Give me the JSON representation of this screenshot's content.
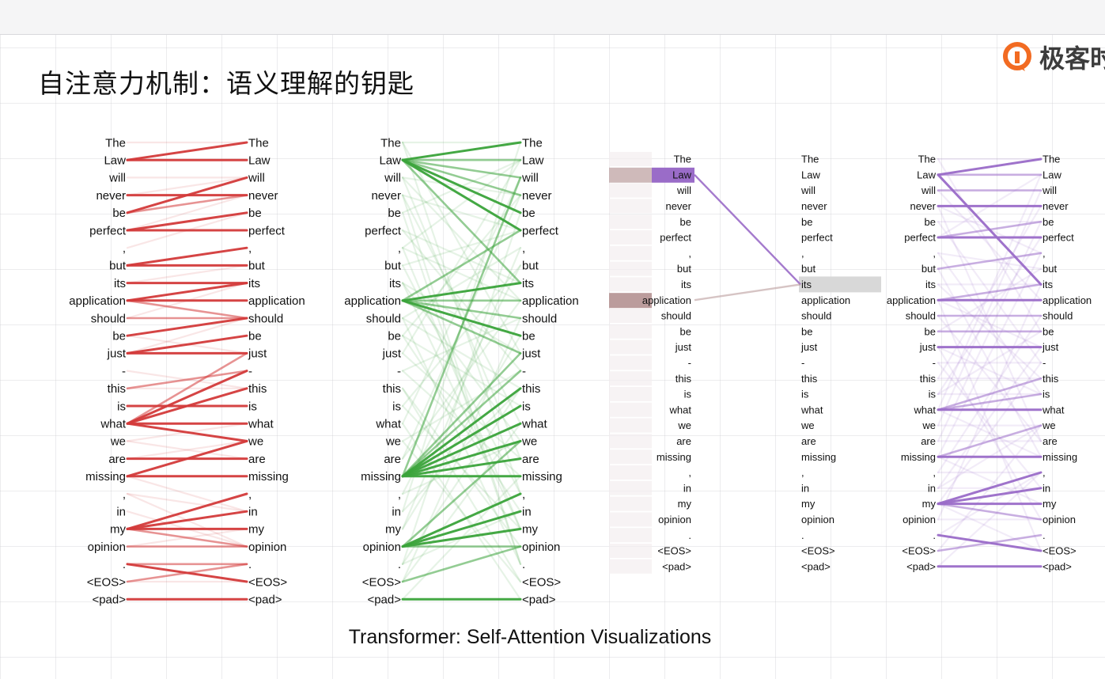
{
  "window": {},
  "slide": {
    "title": "自注意力机制：语义理解的钥匙",
    "brand": "极客时",
    "caption": "Transformer: Self-Attention Visualizations"
  },
  "tokens": [
    "The",
    "Law",
    "will",
    "never",
    "be",
    "perfect",
    ",",
    "but",
    "its",
    "application",
    "should",
    "be",
    "just",
    "-",
    "this",
    "is",
    "what",
    "we",
    "are",
    "missing",
    ",",
    "in",
    "my",
    "opinion",
    ".",
    "<EOS>",
    "<pad>"
  ],
  "colors": {
    "red": "#d33a3a",
    "green": "#3aa33a",
    "purple": "#9a6cc8",
    "brown": "#bb9c9c",
    "highlight": "#d8d8d8"
  },
  "panels": [
    {
      "name": "red",
      "color": "red",
      "strong": [
        [
          1,
          0
        ],
        [
          1,
          1
        ],
        [
          3,
          3
        ],
        [
          4,
          2
        ],
        [
          5,
          5
        ],
        [
          5,
          4
        ],
        [
          7,
          6
        ],
        [
          7,
          7
        ],
        [
          8,
          8
        ],
        [
          9,
          9
        ],
        [
          9,
          8
        ],
        [
          11,
          10
        ],
        [
          12,
          12
        ],
        [
          12,
          11
        ],
        [
          15,
          15
        ],
        [
          16,
          16
        ],
        [
          16,
          14
        ],
        [
          16,
          13
        ],
        [
          16,
          17
        ],
        [
          18,
          18
        ],
        [
          19,
          19
        ],
        [
          19,
          17
        ],
        [
          22,
          22
        ],
        [
          22,
          20
        ],
        [
          22,
          21
        ],
        [
          24,
          25
        ],
        [
          26,
          26
        ]
      ],
      "medium": [
        [
          4,
          3
        ],
        [
          9,
          10
        ],
        [
          10,
          10
        ],
        [
          14,
          13
        ],
        [
          16,
          12
        ],
        [
          22,
          23
        ],
        [
          23,
          23
        ],
        [
          24,
          24
        ],
        [
          25,
          24
        ]
      ],
      "faint": [
        [
          0,
          0
        ],
        [
          2,
          2
        ],
        [
          3,
          2
        ],
        [
          6,
          4
        ],
        [
          8,
          7
        ],
        [
          10,
          8
        ],
        [
          11,
          12
        ],
        [
          13,
          14
        ],
        [
          14,
          14
        ],
        [
          17,
          18
        ],
        [
          18,
          17
        ],
        [
          20,
          21
        ],
        [
          21,
          23
        ],
        [
          23,
          22
        ],
        [
          25,
          25
        ],
        [
          5,
          3
        ],
        [
          12,
          10
        ],
        [
          17,
          16
        ],
        [
          19,
          21
        ],
        [
          20,
          23
        ]
      ]
    },
    {
      "name": "green",
      "color": "green",
      "strong": [
        [
          1,
          0
        ],
        [
          1,
          4
        ],
        [
          1,
          5
        ],
        [
          9,
          8
        ],
        [
          9,
          11
        ],
        [
          19,
          14
        ],
        [
          19,
          15
        ],
        [
          19,
          16
        ],
        [
          19,
          17
        ],
        [
          19,
          18
        ],
        [
          19,
          19
        ],
        [
          23,
          21
        ],
        [
          23,
          22
        ],
        [
          23,
          20
        ],
        [
          26,
          26
        ]
      ],
      "medium": [
        [
          1,
          1
        ],
        [
          1,
          2
        ],
        [
          1,
          3
        ],
        [
          9,
          9
        ],
        [
          9,
          10
        ],
        [
          9,
          12
        ],
        [
          19,
          12
        ],
        [
          19,
          13
        ],
        [
          23,
          23
        ],
        [
          25,
          23
        ],
        [
          19,
          2
        ],
        [
          23,
          17
        ],
        [
          9,
          5
        ],
        [
          1,
          8
        ]
      ],
      "faint": [
        [
          0,
          0
        ],
        [
          2,
          3
        ],
        [
          3,
          5
        ],
        [
          5,
          8
        ],
        [
          8,
          12
        ],
        [
          11,
          15
        ],
        [
          13,
          19
        ],
        [
          15,
          22
        ],
        [
          17,
          25
        ],
        [
          21,
          0
        ],
        [
          24,
          4
        ],
        [
          6,
          9
        ],
        [
          10,
          14
        ],
        [
          12,
          18
        ],
        [
          14,
          23
        ],
        [
          16,
          26
        ],
        [
          18,
          3
        ],
        [
          20,
          7
        ],
        [
          22,
          11
        ],
        [
          25,
          16
        ],
        [
          0,
          20
        ],
        [
          3,
          24
        ],
        [
          6,
          1
        ],
        [
          10,
          6
        ],
        [
          13,
          10
        ],
        [
          17,
          13
        ],
        [
          20,
          17
        ],
        [
          24,
          21
        ],
        [
          2,
          9
        ],
        [
          5,
          13
        ],
        [
          8,
          17
        ],
        [
          11,
          21
        ],
        [
          14,
          25
        ],
        [
          4,
          1
        ],
        [
          7,
          5
        ],
        [
          16,
          2
        ],
        [
          22,
          6
        ],
        [
          25,
          10
        ],
        [
          2,
          18
        ],
        [
          6,
          22
        ],
        [
          11,
          3
        ],
        [
          15,
          7
        ],
        [
          21,
          14
        ],
        [
          26,
          19
        ],
        [
          4,
          24
        ],
        [
          8,
          22
        ],
        [
          12,
          1
        ],
        [
          18,
          9
        ],
        [
          24,
          14
        ],
        [
          0,
          12
        ],
        [
          3,
          16
        ],
        [
          7,
          20
        ],
        [
          10,
          24
        ]
      ]
    },
    {
      "name": "purple",
      "color": "purple",
      "strong": [
        [
          1,
          0
        ],
        [
          1,
          8
        ],
        [
          3,
          3
        ],
        [
          5,
          5
        ],
        [
          9,
          9
        ],
        [
          12,
          12
        ],
        [
          16,
          16
        ],
        [
          19,
          19
        ],
        [
          22,
          22
        ],
        [
          22,
          21
        ],
        [
          22,
          20
        ],
        [
          24,
          25
        ],
        [
          26,
          26
        ]
      ],
      "medium": [
        [
          1,
          1
        ],
        [
          2,
          2
        ],
        [
          5,
          4
        ],
        [
          10,
          10
        ],
        [
          16,
          14
        ],
        [
          16,
          15
        ],
        [
          19,
          17
        ],
        [
          22,
          23
        ],
        [
          25,
          24
        ],
        [
          7,
          6
        ],
        [
          9,
          8
        ],
        [
          11,
          11
        ]
      ],
      "faint": [
        [
          0,
          0
        ],
        [
          4,
          4
        ],
        [
          6,
          7
        ],
        [
          8,
          8
        ],
        [
          13,
          13
        ],
        [
          14,
          14
        ],
        [
          15,
          15
        ],
        [
          17,
          17
        ],
        [
          18,
          18
        ],
        [
          20,
          20
        ],
        [
          21,
          21
        ],
        [
          23,
          23
        ],
        [
          3,
          6
        ],
        [
          9,
          12
        ],
        [
          12,
          15
        ],
        [
          16,
          19
        ],
        [
          19,
          22
        ],
        [
          22,
          25
        ],
        [
          5,
          1
        ],
        [
          11,
          7
        ],
        [
          15,
          11
        ],
        [
          21,
          17
        ],
        [
          24,
          20
        ],
        [
          2,
          9
        ],
        [
          8,
          14
        ],
        [
          14,
          3
        ],
        [
          20,
          10
        ],
        [
          25,
          17
        ],
        [
          4,
          13
        ],
        [
          10,
          18
        ],
        [
          17,
          2
        ],
        [
          23,
          8
        ],
        [
          6,
          15
        ],
        [
          13,
          21
        ],
        [
          18,
          4
        ],
        [
          0,
          11
        ],
        [
          7,
          19
        ],
        [
          12,
          23
        ],
        [
          15,
          5
        ],
        [
          21,
          12
        ],
        [
          3,
          18
        ],
        [
          9,
          25
        ],
        [
          16,
          1
        ],
        [
          19,
          6
        ],
        [
          22,
          13
        ],
        [
          26,
          20
        ]
      ]
    }
  ],
  "single_head": {
    "source_token": "Law",
    "target_token": "its",
    "edges": [
      {
        "from": "Law",
        "to": "its",
        "weight": 0.9
      },
      {
        "from": "application",
        "to": "its",
        "weight": 0.6
      }
    ]
  }
}
